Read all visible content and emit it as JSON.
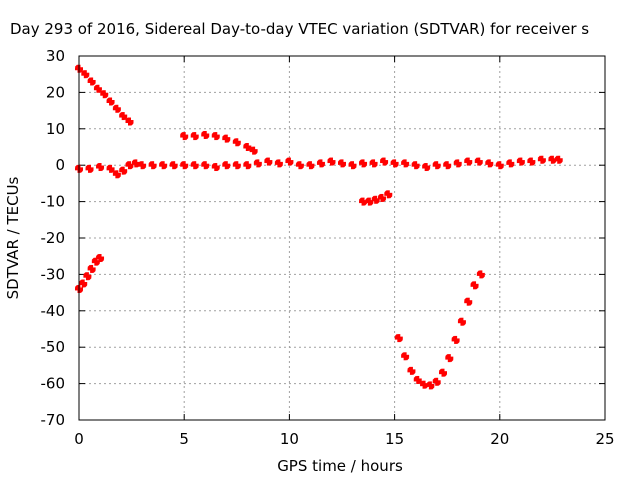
{
  "chart_data": {
    "type": "scatter",
    "title": "Day 293 of 2016, Sidereal Day-to-day VTEC variation (SDTVAR) for receiver s",
    "xlabel": "GPS time / hours",
    "ylabel": "SDTVAR / TECUs",
    "xlim": [
      0,
      25
    ],
    "ylim": [
      -70,
      30
    ],
    "x_ticks": [
      "0",
      "5",
      "10",
      "15",
      "20",
      "25"
    ],
    "y_ticks": [
      "-70",
      "-60",
      "-50",
      "-40",
      "-30",
      "-20",
      "-10",
      "0",
      "10",
      "20",
      "30"
    ],
    "grid": true,
    "legend": "none",
    "series_color": "#ff0000",
    "series": [
      {
        "x": [
          0,
          0.3,
          0.6,
          0.9,
          1.2,
          1.5,
          1.8,
          2.1,
          2.4
        ],
        "y": [
          26.5,
          25,
          23,
          21,
          19.5,
          17.5,
          15.5,
          13.5,
          12
        ]
      },
      {
        "x": [
          0,
          0.2,
          0.4,
          0.6,
          0.8,
          1.0
        ],
        "y": [
          -34,
          -32.5,
          -30.5,
          -28.5,
          -26.5,
          -25.5
        ]
      },
      {
        "x": [
          0,
          0.5,
          1.0,
          1.5,
          1.8,
          2.1,
          2.4,
          2.7,
          3,
          3.5,
          4,
          4.5,
          5,
          5.5,
          6,
          6.5,
          7,
          7.5,
          8,
          8.5,
          9,
          9.5,
          10,
          10.5,
          11,
          11.5,
          12,
          12.5,
          13,
          13.5,
          14,
          14.5,
          15,
          15.5,
          16,
          16.5,
          17,
          17.5,
          18,
          18.5,
          19,
          19.5,
          20,
          20.5,
          21,
          21.5,
          22,
          22.5,
          22.8
        ],
        "y": [
          -1,
          -1,
          -0.5,
          -1,
          -2.5,
          -1.5,
          0,
          0.5,
          0,
          0,
          0,
          0,
          0,
          0,
          0,
          -0.5,
          0,
          0,
          0,
          0.5,
          1,
          0.5,
          1,
          0,
          0,
          0.5,
          1,
          0.5,
          0,
          0.5,
          0.5,
          1,
          0.5,
          0.5,
          0,
          -0.5,
          0,
          0,
          0.5,
          1,
          1,
          0.5,
          0,
          0.5,
          1,
          1,
          1.5,
          1.5,
          1.5
        ]
      },
      {
        "x": [
          5,
          5.5,
          6,
          6.5,
          7,
          7.5,
          8,
          8.3
        ],
        "y": [
          8,
          8,
          8.3,
          8,
          7.3,
          6.3,
          5,
          4
        ]
      },
      {
        "x": [
          13.5,
          13.8,
          14.1,
          14.4,
          14.7
        ],
        "y": [
          -10,
          -10,
          -9.5,
          -9,
          -8
        ]
      },
      {
        "x": [
          15.2,
          15.5,
          15.8,
          16.1,
          16.4,
          16.7,
          17.0,
          17.3,
          17.6,
          17.9,
          18.2,
          18.5,
          18.8,
          19.1
        ],
        "y": [
          -47.5,
          -52.5,
          -56.5,
          -59,
          -60.3,
          -60.5,
          -59.5,
          -57,
          -53,
          -48,
          -43,
          -37.5,
          -33,
          -30
        ]
      }
    ]
  }
}
